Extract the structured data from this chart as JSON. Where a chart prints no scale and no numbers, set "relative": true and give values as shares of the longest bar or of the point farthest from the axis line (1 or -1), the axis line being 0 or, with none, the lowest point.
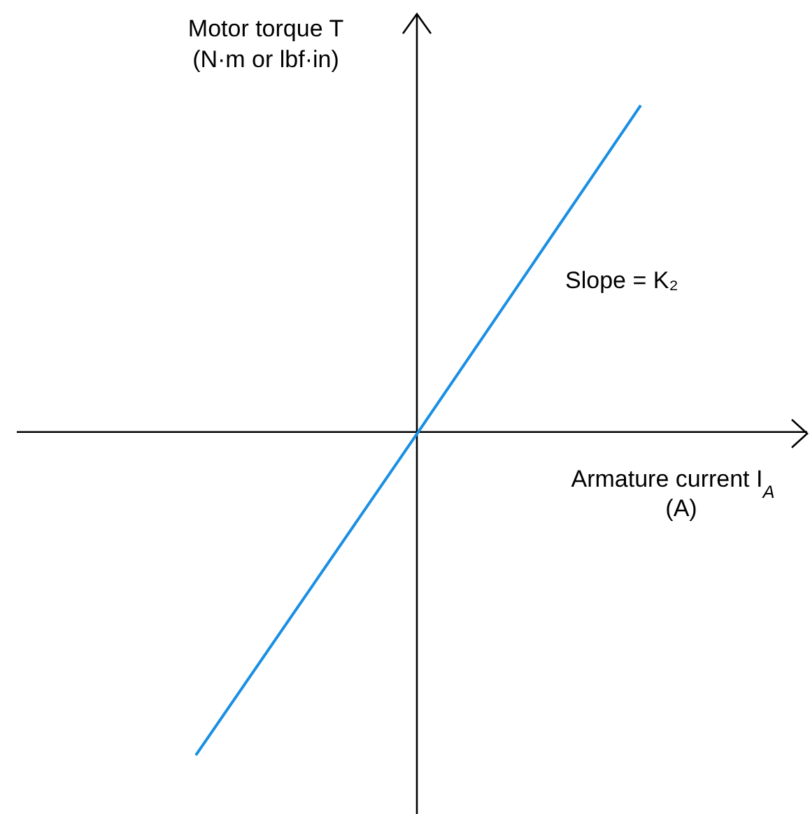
{
  "chart_data": {
    "type": "line",
    "relative": true,
    "xlabel": "Armature current I$_{A}$\n(A)",
    "ylabel": "Motor torque T\n(N·m or lbf·in)",
    "categories": [
      null,
      null,
      null
    ],
    "series": [
      {
        "color": "#1a8fe3",
        "values": [
          -0.99,
          0,
          1
        ]
      }
    ],
    "annotations": [
      "Slope = K₂"
    ],
    "marker": "none",
    "line_style": "solid"
  }
}
